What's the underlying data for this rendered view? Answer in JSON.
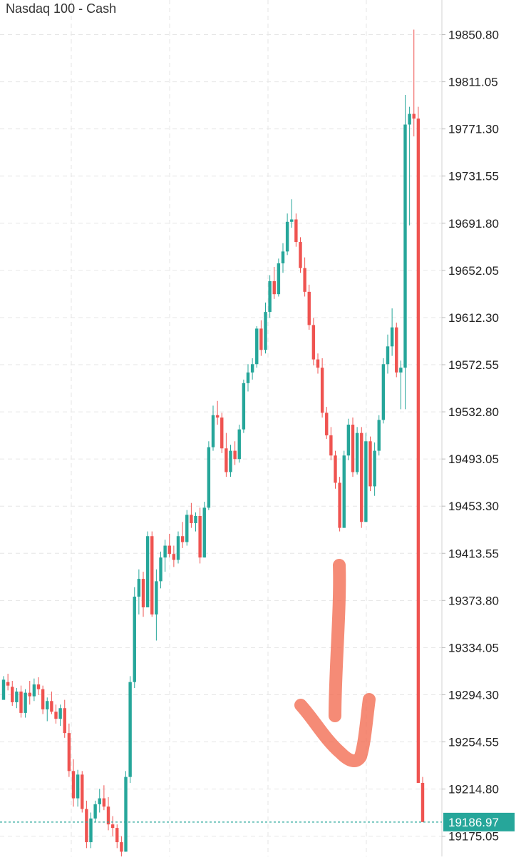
{
  "title": "Nasdaq 100 - Cash",
  "colors": {
    "up": "#26a69a",
    "down": "#ef5350",
    "grid": "#e6e6e6",
    "axis": "#d0d0d0",
    "price_line": "#26a69a",
    "annotation": "#f26a4f"
  },
  "annotation": {
    "icon": "hand-drawn-down-arrow-icon"
  },
  "chart_data": {
    "type": "candlestick",
    "title": "Nasdaq 100 - Cash",
    "xlabel": "",
    "ylabel": "",
    "ylim": [
      19158,
      19880
    ],
    "grid": true,
    "y_ticks": [
      19850.8,
      19811.05,
      19771.3,
      19731.55,
      19691.8,
      19652.05,
      19612.3,
      19572.55,
      19532.8,
      19493.05,
      19453.3,
      19413.55,
      19373.8,
      19334.05,
      19294.3,
      19254.55,
      19214.8,
      19175.05
    ],
    "y_tick_labels": [
      "19850.80",
      "19811.05",
      "19771.30",
      "19731.55",
      "19691.80",
      "19652.05",
      "19612.30",
      "19572.55",
      "19532.80",
      "19493.05",
      "19453.30",
      "19413.55",
      "19373.80",
      "19334.05",
      "19294.30",
      "19254.55",
      "19214.80",
      "19175.05"
    ],
    "last_price": 19186.97,
    "last_price_label": "19186.97",
    "candles": [
      [
        19290,
        19310,
        19295,
        19307
      ],
      [
        19305,
        19312,
        19298,
        19302
      ],
      [
        19301,
        19306,
        19285,
        19288
      ],
      [
        19288,
        19300,
        19283,
        19297
      ],
      [
        19297,
        19302,
        19275,
        19279
      ],
      [
        19279,
        19299,
        19275,
        19296
      ],
      [
        19296,
        19306,
        19286,
        19293
      ],
      [
        19293,
        19308,
        19289,
        19303
      ],
      [
        19303,
        19309,
        19294,
        19299
      ],
      [
        19299,
        19302,
        19278,
        19282
      ],
      [
        19282,
        19292,
        19272,
        19289
      ],
      [
        19289,
        19297,
        19278,
        19280
      ],
      [
        19280,
        19286,
        19270,
        19274
      ],
      [
        19274,
        19286,
        19268,
        19283
      ],
      [
        19283,
        19290,
        19258,
        19262
      ],
      [
        19262,
        19270,
        19225,
        19230
      ],
      [
        19230,
        19240,
        19200,
        19207
      ],
      [
        19207,
        19231,
        19200,
        19227
      ],
      [
        19227,
        19230,
        19195,
        19198
      ],
      [
        19198,
        19205,
        19165,
        19170
      ],
      [
        19170,
        19195,
        19165,
        19190
      ],
      [
        19190,
        19205,
        19187,
        19202
      ],
      [
        19202,
        19215,
        19195,
        19207
      ],
      [
        19207,
        19218,
        19197,
        19200
      ],
      [
        19200,
        19208,
        19180,
        19185
      ],
      [
        19185,
        19192,
        19175,
        19182
      ],
      [
        19182,
        19185,
        19165,
        19170
      ],
      [
        19170,
        19175,
        19155,
        19162
      ],
      [
        19162,
        19230,
        19162,
        19225
      ],
      [
        19225,
        19310,
        19220,
        19305
      ],
      [
        19305,
        19385,
        19300,
        19377
      ],
      [
        19377,
        19400,
        19362,
        19392
      ],
      [
        19392,
        19398,
        19360,
        19368
      ],
      [
        19368,
        19432,
        19368,
        19428
      ],
      [
        19428,
        19432,
        19360,
        19362
      ],
      [
        19362,
        19400,
        19340,
        19390
      ],
      [
        19390,
        19415,
        19384,
        19410
      ],
      [
        19410,
        19425,
        19398,
        19420
      ],
      [
        19420,
        19430,
        19410,
        19413
      ],
      [
        19413,
        19420,
        19402,
        19408
      ],
      [
        19408,
        19432,
        19405,
        19428
      ],
      [
        19428,
        19440,
        19418,
        19423
      ],
      [
        19423,
        19450,
        19420,
        19446
      ],
      [
        19446,
        19456,
        19435,
        19439
      ],
      [
        19439,
        19448,
        19432,
        19445
      ],
      [
        19445,
        19452,
        19405,
        19410
      ],
      [
        19410,
        19457,
        19410,
        19452
      ],
      [
        19452,
        19508,
        19450,
        19503
      ],
      [
        19503,
        19538,
        19500,
        19530
      ],
      [
        19530,
        19542,
        19522,
        19528
      ],
      [
        19528,
        19532,
        19498,
        19502
      ],
      [
        19502,
        19515,
        19478,
        19482
      ],
      [
        19482,
        19505,
        19478,
        19500
      ],
      [
        19500,
        19508,
        19488,
        19493
      ],
      [
        19493,
        19522,
        19490,
        19518
      ],
      [
        19518,
        19560,
        19515,
        19557
      ],
      [
        19557,
        19573,
        19550,
        19566
      ],
      [
        19566,
        19578,
        19560,
        19573
      ],
      [
        19573,
        19605,
        19570,
        19603
      ],
      [
        19603,
        19610,
        19580,
        19585
      ],
      [
        19585,
        19625,
        19582,
        19617
      ],
      [
        19617,
        19648,
        19612,
        19643
      ],
      [
        19643,
        19655,
        19628,
        19632
      ],
      [
        19632,
        19662,
        19630,
        19658
      ],
      [
        19658,
        19675,
        19650,
        19668
      ],
      [
        19668,
        19700,
        19665,
        19693
      ],
      [
        19693,
        19712,
        19688,
        19695
      ],
      [
        19695,
        19700,
        19672,
        19676
      ],
      [
        19676,
        19680,
        19650,
        19654
      ],
      [
        19654,
        19663,
        19630,
        19634
      ],
      [
        19634,
        19640,
        19602,
        19606
      ],
      [
        19606,
        19612,
        19572,
        19577
      ],
      [
        19577,
        19582,
        19565,
        19570
      ],
      [
        19570,
        19578,
        19528,
        19532
      ],
      [
        19532,
        19537,
        19510,
        19513
      ],
      [
        19513,
        19520,
        19492,
        19496
      ],
      [
        19496,
        19500,
        19468,
        19473
      ],
      [
        19473,
        19478,
        19432,
        19435
      ],
      [
        19435,
        19500,
        19435,
        19496
      ],
      [
        19496,
        19527,
        19492,
        19522
      ],
      [
        19522,
        19528,
        19478,
        19482
      ],
      [
        19482,
        19520,
        19480,
        19515
      ],
      [
        19515,
        19520,
        19435,
        19440
      ],
      [
        19440,
        19515,
        19440,
        19508
      ],
      [
        19508,
        19512,
        19466,
        19470
      ],
      [
        19470,
        19507,
        19462,
        19500
      ],
      [
        19500,
        19530,
        19496,
        19526
      ],
      [
        19526,
        19578,
        19523,
        19573
      ],
      [
        19573,
        19598,
        19565,
        19588
      ],
      [
        19588,
        19620,
        19580,
        19604
      ],
      [
        19604,
        19608,
        19562,
        19566
      ],
      [
        19566,
        19576,
        19535,
        19570
      ],
      [
        19570,
        19800,
        19535,
        19775
      ],
      [
        19775,
        19790,
        19690,
        19784
      ],
      [
        19784,
        19855,
        19765,
        19780
      ],
      [
        19780,
        19790,
        19220,
        19220
      ],
      [
        19220,
        19225,
        19187,
        19187
      ]
    ]
  }
}
